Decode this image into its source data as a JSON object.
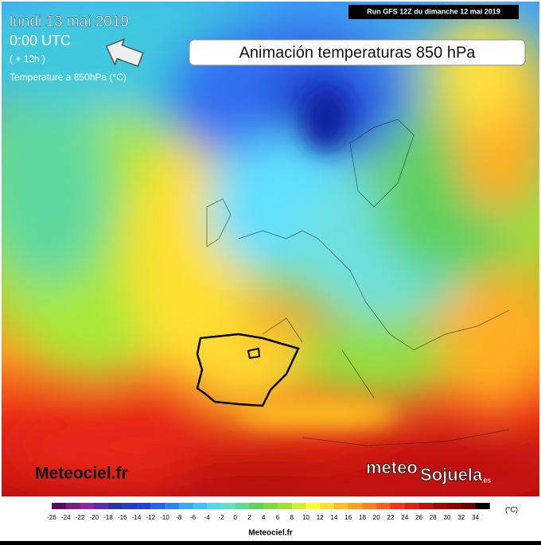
{
  "header": {
    "date": "lundi 13 mai 2019",
    "time": "0:00 UTC",
    "offset": "( + 12h )",
    "variable": "Temperature a 850hPa (°C)",
    "run": "Run GFS 12Z du dimanche 12 mai 2019",
    "banner": "Animación temperaturas 850 hPa"
  },
  "logos": {
    "meteociel": "Meteociel.fr",
    "sojuela_meteo": "meteo",
    "sojuela_name": "Sojuela",
    "sojuela_tld": ".es"
  },
  "legend": {
    "unit": "(°C)",
    "ticks": [
      -26,
      -24,
      -22,
      -20,
      -18,
      -16,
      -14,
      -12,
      -10,
      -8,
      -6,
      -4,
      -2,
      0,
      2,
      4,
      6,
      8,
      10,
      12,
      14,
      16,
      18,
      20,
      22,
      24,
      26,
      28,
      30,
      32,
      34
    ]
  },
  "footer": {
    "source": "Meteociel.fr"
  }
}
